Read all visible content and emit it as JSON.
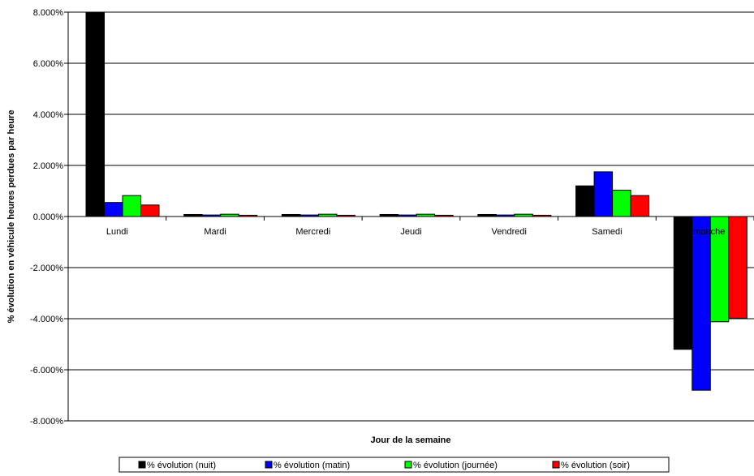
{
  "chart_data": {
    "type": "bar",
    "xlabel": "Jour de la semaine",
    "ylabel": "% évolution en véhicule heures perdues par heure",
    "ylim": [
      -8,
      8
    ],
    "ytick_step": 2,
    "ytick_labels": [
      "-8.000%",
      "-6.000%",
      "-4.000%",
      "-2.000%",
      "0.000%",
      "2.000%",
      "4.000%",
      "6.000%",
      "8.000%"
    ],
    "grid": true,
    "legend_position": "bottom",
    "categories": [
      "Lundi",
      "Mardi",
      "Mercredi",
      "Jeudi",
      "Vendredi",
      "Samedi",
      "Dimanche"
    ],
    "series": [
      {
        "name": "% évolution (nuit)",
        "color": "#000000",
        "values": [
          8.0,
          0.08,
          0.08,
          0.08,
          0.08,
          1.2,
          -5.2
        ]
      },
      {
        "name": "% évolution (matin)",
        "color": "#0000ff",
        "values": [
          0.55,
          0.06,
          0.06,
          0.06,
          0.06,
          1.75,
          -6.8
        ]
      },
      {
        "name": "% évolution (journée)",
        "color": "#00ff00",
        "values": [
          0.82,
          0.09,
          0.09,
          0.09,
          0.09,
          1.03,
          -4.12
        ]
      },
      {
        "name": "% évolution (soir)",
        "color": "#ff0000",
        "values": [
          0.45,
          0.05,
          0.05,
          0.05,
          0.05,
          0.82,
          -3.98
        ]
      }
    ]
  }
}
